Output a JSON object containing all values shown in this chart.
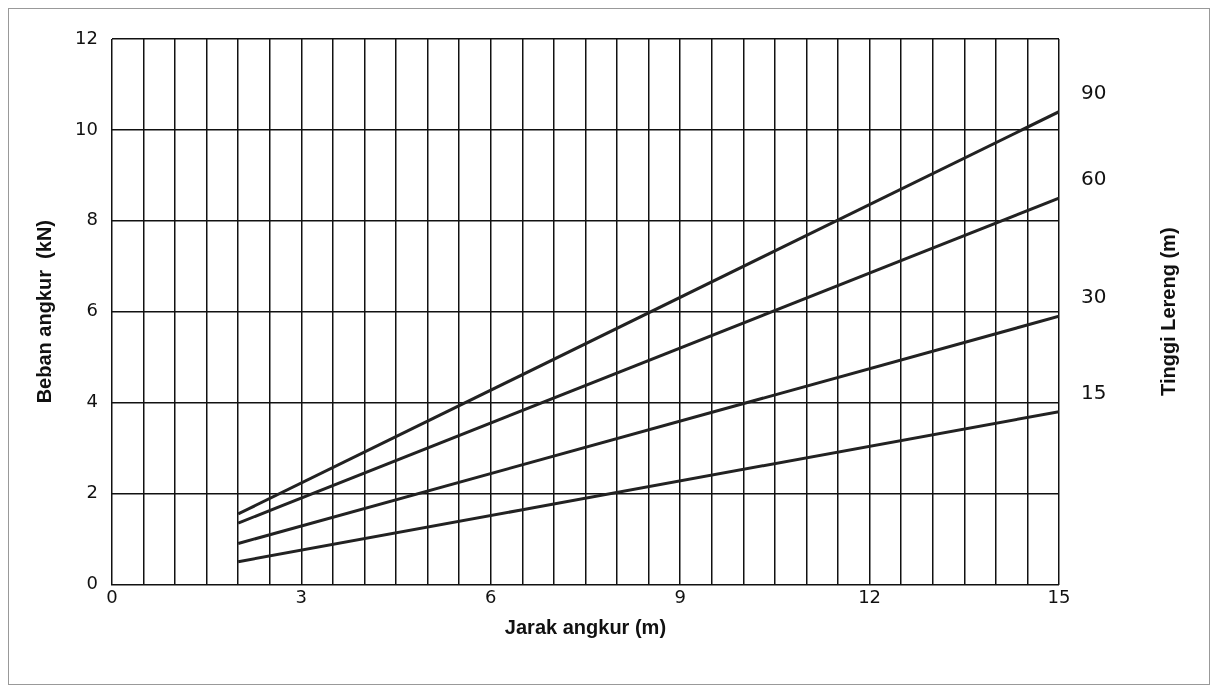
{
  "chart_data": {
    "type": "line",
    "xlabel": "Jarak angkur (m)",
    "ylabel": "Beban angkur  (kN)",
    "y2label": "Tinggi Lereng (m)",
    "xlim": [
      0,
      15
    ],
    "ylim": [
      0,
      12
    ],
    "xticks": [
      0,
      {
        "value": 0.5,
        "label": null
      },
      {
        "value": 1,
        "label": null
      },
      {
        "value": 1.5,
        "label": null
      },
      {
        "value": 2,
        "label": null
      },
      {
        "value": 2.5,
        "label": null
      },
      3,
      {
        "value": 3.5,
        "label": null
      },
      {
        "value": 4,
        "label": null
      },
      {
        "value": 4.5,
        "label": null
      },
      {
        "value": 5,
        "label": null
      },
      {
        "value": 5.5,
        "label": null
      },
      6,
      {
        "value": 6.5,
        "label": null
      },
      {
        "value": 7,
        "label": null
      },
      {
        "value": 7.5,
        "label": null
      },
      {
        "value": 8,
        "label": null
      },
      {
        "value": 8.5,
        "label": null
      },
      9,
      {
        "value": 9.5,
        "label": null
      },
      {
        "value": 10,
        "label": null
      },
      {
        "value": 10.5,
        "label": null
      },
      {
        "value": 11,
        "label": null
      },
      {
        "value": 11.5,
        "label": null
      },
      12,
      {
        "value": 12.5,
        "label": null
      },
      {
        "value": 13,
        "label": null
      },
      {
        "value": 13.5,
        "label": null
      },
      {
        "value": 14,
        "label": null
      },
      {
        "value": 14.5,
        "label": null
      },
      15
    ],
    "yticks": [
      0,
      2,
      4,
      6,
      8,
      10,
      12
    ],
    "grid": true,
    "marker": "none",
    "line_style": "solid",
    "x": [
      2,
      15
    ],
    "series": [
      {
        "name": "90",
        "color": "#222222",
        "values": [
          1.55,
          10.4
        ]
      },
      {
        "name": "60",
        "color": "#222222",
        "values": [
          1.35,
          8.5
        ]
      },
      {
        "name": "30",
        "color": "#222222",
        "values": [
          0.9,
          5.9
        ]
      },
      {
        "name": "15",
        "color": "#222222",
        "values": [
          0.5,
          3.8
        ]
      }
    ]
  }
}
